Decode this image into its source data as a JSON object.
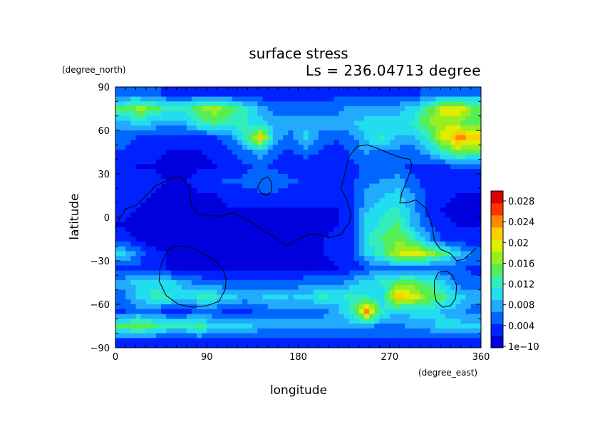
{
  "chart_data": {
    "type": "heatmap",
    "title": "surface stress",
    "subtitle": "Ls = 236.04713 degree",
    "xlabel": "longitude",
    "ylabel": "latitude",
    "x_units": "(degree_east)",
    "y_units": "(degree_north)",
    "xlim": [
      0,
      360
    ],
    "ylim": [
      -90,
      90
    ],
    "x_ticks": [
      "0",
      "90",
      "180",
      "270",
      "360"
    ],
    "y_ticks": [
      "90",
      "60",
      "30",
      "0",
      "−30",
      "−60",
      "−90"
    ],
    "colorbar": {
      "labels": [
        "1e−10",
        "0.004",
        "0.008",
        "0.012",
        "0.016",
        "0.02",
        "0.024",
        "0.028"
      ],
      "range": [
        0,
        0.03
      ],
      "colors": [
        "#0000dd",
        "#0022ff",
        "#0066ff",
        "#22aaff",
        "#22ddee",
        "#33eebb",
        "#55ee55",
        "#99ee22",
        "#ddee00",
        "#ffcc00",
        "#ff8800",
        "#ff3300",
        "#dd0000"
      ]
    },
    "field_lat": [
      85,
      75,
      65,
      55,
      45,
      35,
      25,
      15,
      5,
      -5,
      -15,
      -25,
      -35,
      -45,
      -55,
      -65,
      -75,
      -85
    ],
    "field_lon": [
      7.5,
      22.5,
      37.5,
      52.5,
      67.5,
      82.5,
      97.5,
      112.5,
      127.5,
      142.5,
      157.5,
      172.5,
      187.5,
      202.5,
      217.5,
      232.5,
      247.5,
      262.5,
      277.5,
      292.5,
      307.5,
      322.5,
      337.5,
      352.5
    ],
    "field": [
      [
        0.006,
        0.006,
        0.005,
        0.004,
        0.004,
        0.003,
        0.003,
        0.003,
        0.003,
        0.003,
        0.003,
        0.003,
        0.003,
        0.003,
        0.004,
        0.004,
        0.004,
        0.004,
        0.004,
        0.004,
        0.005,
        0.006,
        0.006,
        0.006
      ],
      [
        0.014,
        0.017,
        0.015,
        0.012,
        0.012,
        0.016,
        0.018,
        0.015,
        0.012,
        0.008,
        0.006,
        0.006,
        0.006,
        0.006,
        0.006,
        0.008,
        0.008,
        0.008,
        0.008,
        0.01,
        0.014,
        0.019,
        0.02,
        0.016
      ],
      [
        0.008,
        0.01,
        0.009,
        0.008,
        0.008,
        0.012,
        0.014,
        0.013,
        0.012,
        0.01,
        0.008,
        0.008,
        0.008,
        0.008,
        0.008,
        0.009,
        0.01,
        0.01,
        0.01,
        0.012,
        0.016,
        0.018,
        0.017,
        0.014
      ],
      [
        0.006,
        0.004,
        0.003,
        0.003,
        0.003,
        0.004,
        0.004,
        0.006,
        0.012,
        0.021,
        0.008,
        0.006,
        0.01,
        0.006,
        0.005,
        0.006,
        0.01,
        0.012,
        0.009,
        0.008,
        0.012,
        0.019,
        0.024,
        0.022
      ],
      [
        0.004,
        0.003,
        0.003,
        0.002,
        0.002,
        0.002,
        0.003,
        0.004,
        0.006,
        0.008,
        0.005,
        0.004,
        0.006,
        0.004,
        0.003,
        0.005,
        0.007,
        0.006,
        0.006,
        0.006,
        0.008,
        0.012,
        0.016,
        0.014
      ],
      [
        0.003,
        0.002,
        0.002,
        0.002,
        0.002,
        0.002,
        0.002,
        0.003,
        0.004,
        0.005,
        0.004,
        0.003,
        0.003,
        0.003,
        0.003,
        0.004,
        0.005,
        0.006,
        0.005,
        0.004,
        0.004,
        0.004,
        0.005,
        0.005
      ],
      [
        0.004,
        0.004,
        0.003,
        0.002,
        0.002,
        0.003,
        0.004,
        0.005,
        0.005,
        0.006,
        0.006,
        0.005,
        0.004,
        0.003,
        0.003,
        0.004,
        0.006,
        0.007,
        0.008,
        0.005,
        0.004,
        0.003,
        0.003,
        0.003
      ],
      [
        0.004,
        0.003,
        0.002,
        0.002,
        0.002,
        0.002,
        0.002,
        0.003,
        0.004,
        0.004,
        0.004,
        0.003,
        0.003,
        0.003,
        0.003,
        0.004,
        0.008,
        0.009,
        0.01,
        0.007,
        0.004,
        0.003,
        0.002,
        0.002
      ],
      [
        0.003,
        0.002,
        0.002,
        0.001,
        0.001,
        0.001,
        0.001,
        0.002,
        0.002,
        0.002,
        0.002,
        0.002,
        0.002,
        0.002,
        0.002,
        0.003,
        0.009,
        0.011,
        0.012,
        0.008,
        0.004,
        0.002,
        0.002,
        0.002
      ],
      [
        0.002,
        0.002,
        0.001,
        0.001,
        0.001,
        0.001,
        0.001,
        0.001,
        0.002,
        0.002,
        0.002,
        0.002,
        0.002,
        0.002,
        0.002,
        0.003,
        0.01,
        0.012,
        0.014,
        0.009,
        0.005,
        0.003,
        0.002,
        0.002
      ],
      [
        0.003,
        0.002,
        0.001,
        0.001,
        0.001,
        0.001,
        0.001,
        0.001,
        0.002,
        0.002,
        0.002,
        0.002,
        0.002,
        0.002,
        0.003,
        0.004,
        0.011,
        0.014,
        0.016,
        0.013,
        0.008,
        0.004,
        0.003,
        0.003
      ],
      [
        0.01,
        0.006,
        0.003,
        0.002,
        0.001,
        0.001,
        0.001,
        0.001,
        0.002,
        0.002,
        0.002,
        0.002,
        0.002,
        0.002,
        0.003,
        0.004,
        0.01,
        0.013,
        0.018,
        0.02,
        0.018,
        0.014,
        0.01,
        0.006
      ],
      [
        0.004,
        0.004,
        0.003,
        0.002,
        0.002,
        0.002,
        0.001,
        0.001,
        0.002,
        0.002,
        0.002,
        0.002,
        0.002,
        0.002,
        0.002,
        0.003,
        0.005,
        0.006,
        0.006,
        0.006,
        0.005,
        0.005,
        0.005,
        0.004
      ],
      [
        0.008,
        0.01,
        0.011,
        0.01,
        0.008,
        0.006,
        0.005,
        0.005,
        0.005,
        0.005,
        0.005,
        0.005,
        0.006,
        0.006,
        0.006,
        0.008,
        0.01,
        0.012,
        0.014,
        0.015,
        0.013,
        0.01,
        0.006,
        0.005
      ],
      [
        0.006,
        0.01,
        0.012,
        0.012,
        0.01,
        0.012,
        0.012,
        0.01,
        0.008,
        0.009,
        0.01,
        0.009,
        0.01,
        0.012,
        0.011,
        0.012,
        0.012,
        0.01,
        0.022,
        0.02,
        0.016,
        0.014,
        0.01,
        0.008
      ],
      [
        0.004,
        0.006,
        0.005,
        0.004,
        0.004,
        0.005,
        0.005,
        0.004,
        0.004,
        0.005,
        0.006,
        0.006,
        0.006,
        0.006,
        0.008,
        0.012,
        0.024,
        0.012,
        0.01,
        0.01,
        0.01,
        0.009,
        0.008,
        0.006
      ],
      [
        0.014,
        0.016,
        0.014,
        0.012,
        0.012,
        0.014,
        0.01,
        0.01,
        0.01,
        0.008,
        0.008,
        0.008,
        0.008,
        0.008,
        0.008,
        0.008,
        0.008,
        0.006,
        0.006,
        0.008,
        0.008,
        0.01,
        0.01,
        0.01
      ],
      [
        0.004,
        0.004,
        0.004,
        0.003,
        0.003,
        0.004,
        0.004,
        0.004,
        0.004,
        0.004,
        0.004,
        0.004,
        0.004,
        0.004,
        0.004,
        0.004,
        0.004,
        0.004,
        0.004,
        0.004,
        0.004,
        0.004,
        0.004,
        0.004
      ]
    ],
    "coastline_outline": [
      [
        -2,
        -12
      ],
      [
        3,
        -2
      ],
      [
        10,
        6
      ],
      [
        20,
        8
      ],
      [
        40,
        22
      ],
      [
        55,
        27
      ],
      [
        64,
        28
      ],
      [
        72,
        22
      ],
      [
        75,
        8
      ],
      [
        82,
        2
      ],
      [
        95,
        1
      ],
      [
        105,
        1
      ],
      [
        115,
        3
      ],
      [
        125,
        0
      ],
      [
        135,
        -4
      ],
      [
        145,
        -9
      ],
      [
        155,
        -13
      ],
      [
        165,
        -18
      ],
      [
        172,
        -19
      ],
      [
        180,
        -15
      ],
      [
        190,
        -12
      ],
      [
        200,
        -12
      ],
      [
        210,
        -14
      ],
      [
        222,
        -12
      ],
      [
        230,
        -4
      ],
      [
        232,
        2
      ],
      [
        228,
        12
      ],
      [
        222,
        20
      ],
      [
        226,
        30
      ],
      [
        230,
        42
      ],
      [
        238,
        49
      ],
      [
        248,
        50
      ],
      [
        260,
        47
      ],
      [
        270,
        44
      ],
      [
        282,
        41
      ],
      [
        290,
        40
      ],
      [
        292,
        36
      ],
      [
        288,
        27
      ],
      [
        282,
        17
      ],
      [
        280,
        10
      ],
      [
        286,
        10
      ],
      [
        296,
        12
      ],
      [
        306,
        6
      ],
      [
        312,
        -6
      ],
      [
        314,
        -16
      ],
      [
        320,
        -22
      ],
      [
        330,
        -25
      ],
      [
        336,
        -30
      ],
      [
        343,
        -29
      ],
      [
        351,
        -24
      ],
      [
        355,
        -21
      ]
    ],
    "contours": [
      [
        [
          140,
          21
        ],
        [
          144,
          26
        ],
        [
          150,
          28
        ],
        [
          154,
          24
        ],
        [
          154,
          18
        ],
        [
          149,
          15
        ],
        [
          143,
          17
        ],
        [
          140,
          21
        ]
      ],
      [
        [
          48,
          -28
        ],
        [
          52,
          -22
        ],
        [
          60,
          -20
        ],
        [
          72,
          -20
        ],
        [
          84,
          -24
        ],
        [
          98,
          -30
        ],
        [
          106,
          -36
        ],
        [
          109,
          -43
        ],
        [
          108,
          -50
        ],
        [
          102,
          -58
        ],
        [
          90,
          -61
        ],
        [
          76,
          -62
        ],
        [
          62,
          -60
        ],
        [
          50,
          -54
        ],
        [
          43,
          -44
        ],
        [
          44,
          -35
        ],
        [
          48,
          -28
        ]
      ],
      [
        [
          318,
          -38
        ],
        [
          326,
          -37
        ],
        [
          332,
          -40
        ],
        [
          336,
          -47
        ],
        [
          335,
          -56
        ],
        [
          330,
          -61
        ],
        [
          322,
          -62
        ],
        [
          316,
          -58
        ],
        [
          314,
          -52
        ],
        [
          314,
          -44
        ],
        [
          318,
          -38
        ]
      ]
    ]
  }
}
